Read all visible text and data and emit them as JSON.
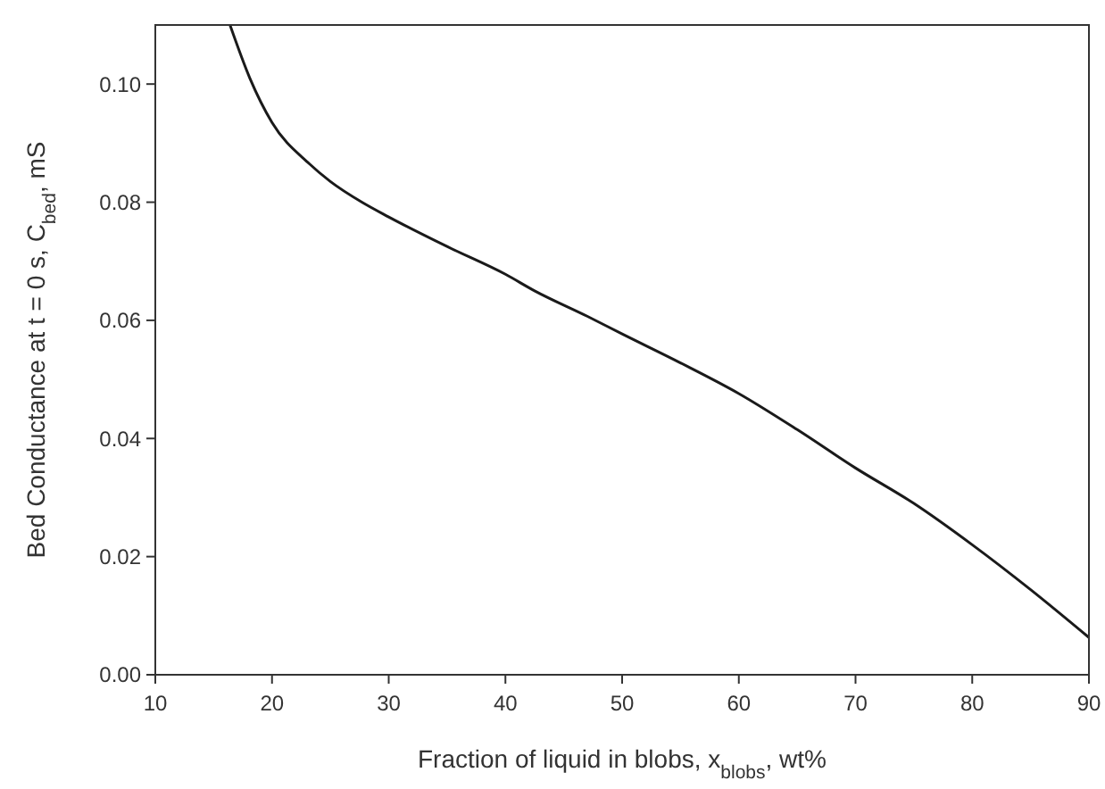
{
  "chart_data": {
    "type": "line",
    "xlabel": "Fraction of liquid in blobs, x$_{blobs}$, wt%",
    "ylabel": "Bed Conductance at t = 0 s, C$_{bed}$, mS",
    "xlim": [
      10,
      90
    ],
    "xticks": [
      10,
      20,
      30,
      40,
      50,
      60,
      70,
      80,
      90
    ],
    "ylim": [
      0,
      0.11
    ],
    "yticks": [
      {
        "value": 0,
        "label": "0.00"
      },
      {
        "value": 0.02,
        "label": "0.02"
      },
      {
        "value": 0.04,
        "label": "0.04"
      },
      {
        "value": 0.06,
        "label": "0.06"
      },
      {
        "value": 0.08,
        "label": "0.08"
      },
      {
        "value": 0.1,
        "label": "0.10"
      }
    ],
    "grid": false,
    "marker": "none",
    "line_style": "solid",
    "x": [
      16.4,
      18.1,
      20,
      23.2,
      25,
      27.7,
      30,
      35,
      40,
      42.5,
      47,
      50,
      55,
      60,
      65,
      70,
      75,
      80,
      85,
      90
    ],
    "series": [
      {
        "color": "#1a1a1a",
        "values": [
          0.11,
          0.101,
          0.0935,
          0.0865,
          0.0835,
          0.08,
          0.0775,
          0.0725,
          0.0678,
          0.065,
          0.0607,
          0.0577,
          0.0528,
          0.0476,
          0.0415,
          0.035,
          0.029,
          0.022,
          0.0144,
          0.0063
        ]
      }
    ]
  }
}
